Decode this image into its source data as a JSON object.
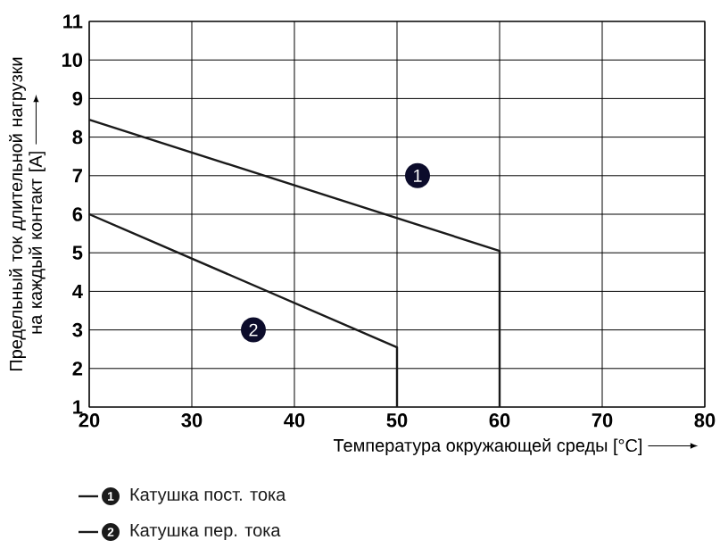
{
  "chart_data": {
    "type": "line",
    "xlabel": "Температура окружающей среды [°C]",
    "ylabel": "Предельный ток длительной нагрузки на каждый контакт [A]",
    "series": [
      {
        "name": "Катушка пост. тока",
        "color": "#1a1a1a",
        "x": [
          20,
          60,
          60
        ],
        "values": [
          8.45,
          5.05,
          1
        ]
      },
      {
        "name": "Катушка пер. тока",
        "color": "#1a1a1a",
        "x": [
          20,
          50,
          50
        ],
        "values": [
          6,
          2.55,
          1
        ]
      }
    ],
    "annotations": [
      {
        "text": "1",
        "x": 52,
        "y": 7
      },
      {
        "text": "2",
        "x": 36,
        "y": 3
      }
    ],
    "xlim": [
      20,
      80
    ],
    "ylim": [
      1,
      11
    ],
    "xticks": [
      20,
      30,
      40,
      50,
      60,
      70,
      80
    ],
    "yticks": [
      1,
      2,
      3,
      4,
      5,
      6,
      7,
      8,
      9,
      10,
      11
    ],
    "grid": true,
    "legend": "bottom",
    "marker": "none",
    "line_style": "solid"
  }
}
